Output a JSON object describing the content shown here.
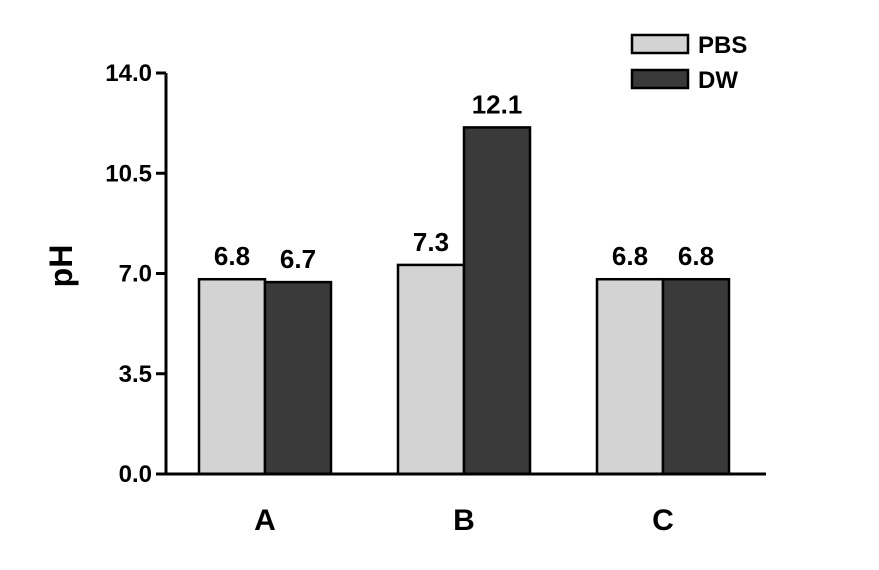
{
  "chart_data": {
    "type": "bar",
    "title": "",
    "xlabel": "",
    "ylabel": "pH",
    "categories": [
      "A",
      "B",
      "C"
    ],
    "series": [
      {
        "name": "PBS",
        "values": [
          6.8,
          7.3,
          6.8
        ],
        "color": "#d3d3d3"
      },
      {
        "name": "DW",
        "values": [
          6.7,
          12.1,
          6.8
        ],
        "color": "#3a3a3a"
      }
    ],
    "data_labels": [
      [
        "6.8",
        "7.3",
        "6.8"
      ],
      [
        "6.7",
        "12.1",
        "6.8"
      ]
    ],
    "ylim": [
      0,
      14
    ],
    "yticks": [
      "0.0",
      "3.5",
      "7.0",
      "10.5",
      "14.0"
    ],
    "grid": false,
    "legend_position": "top-right"
  }
}
